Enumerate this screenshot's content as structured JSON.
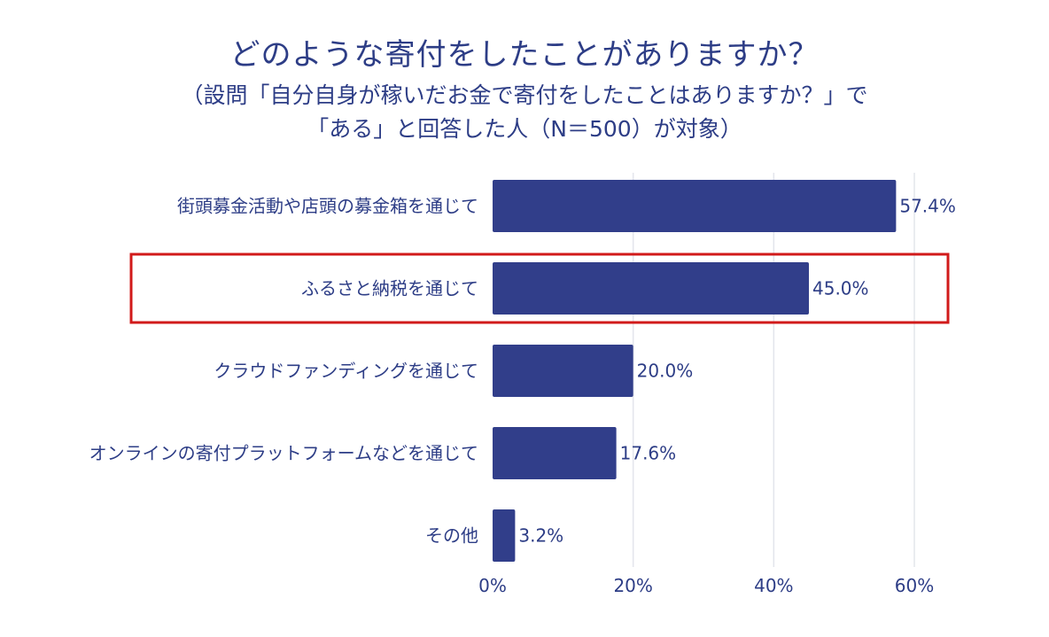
{
  "chart_data": {
    "type": "bar",
    "orientation": "horizontal",
    "title": "どのような寄付をしたことがありますか？",
    "subtitle": [
      "（設問「自分自身が稼いだお金で寄付をしたことはありますか？」で",
      "「ある」と回答した人（N＝500）が対象）"
    ],
    "categories": [
      "街頭募金活動や店頭の募金箱を通じて",
      "ふるさと納税を通じて",
      "クラウドファンディングを通じて",
      "オンラインの寄付プラットフォームなどを通じて",
      "その他"
    ],
    "values": [
      57.4,
      45.0,
      20.0,
      17.6,
      3.2
    ],
    "value_labels": [
      "57.4%",
      "45.0%",
      "20.0%",
      "17.6%",
      "3.2%"
    ],
    "x_ticks": [
      0,
      20,
      40,
      60
    ],
    "x_tick_labels": [
      "0%",
      "20%",
      "40%",
      "60%"
    ],
    "xlim": [
      0,
      60
    ],
    "grid": "vertical",
    "legend": "none",
    "highlighted_category": "ふるさと納税を通じて",
    "colors": {
      "bar": "#313e8a",
      "text": "#2d3d86",
      "grid": "#e3e5ec",
      "highlight_box": "#d11a1a"
    }
  }
}
